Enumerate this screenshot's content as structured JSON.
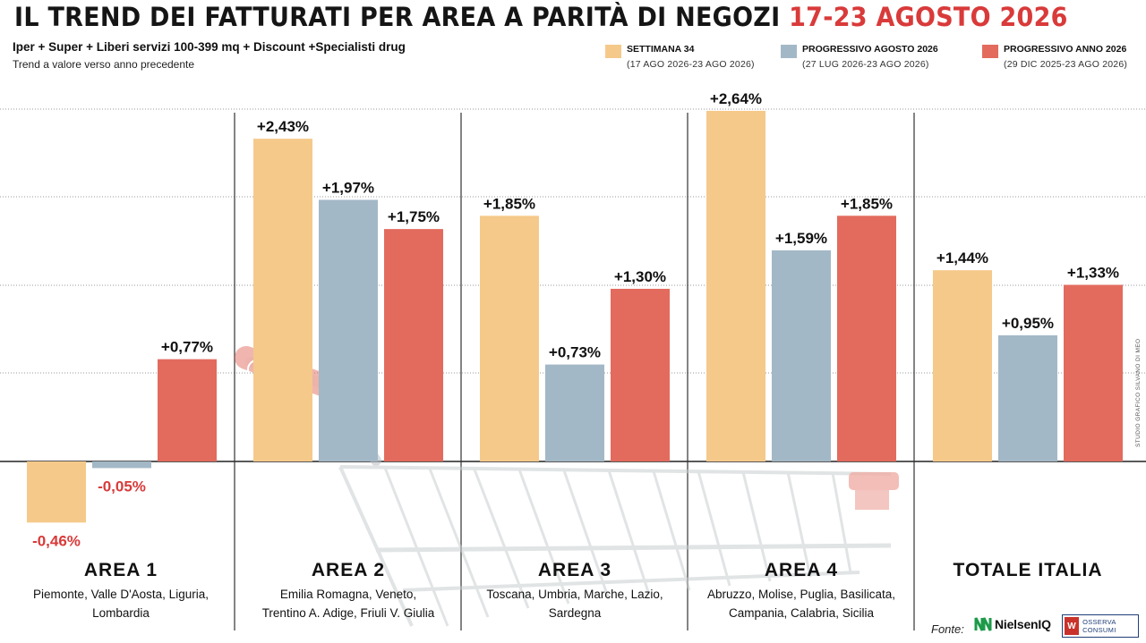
{
  "title": {
    "main": "IL TREND DEI FATTURATI PER AREA A PARITÀ DI NEGOZI",
    "highlight": "17-23 AGOSTO 2026"
  },
  "subtitle": "Iper + Super + Liberi servizi 100-399 mq + Discount +Specialisti drug",
  "subtitle2": "Trend a valore verso anno precedente",
  "legend": [
    {
      "label": "SETTIMANA 34",
      "sub": "(17 AGO 2026-23 AGO 2026)",
      "color": "#f5c98a"
    },
    {
      "label": "PROGRESSIVO AGOSTO 2026",
      "sub": "(27 LUG 2026-23 AGO 2026)",
      "color": "#a3b8c6"
    },
    {
      "label": "PROGRESSIVO ANNO 2026",
      "sub": "(29 DIC 2025-23 AGO 2026)",
      "color": "#e26b5e"
    }
  ],
  "areas": [
    {
      "name": "AREA 1",
      "regions_line1": "Piemonte, Valle D'Aosta, Liguria,",
      "regions_line2": "Lombardia"
    },
    {
      "name": "AREA 2",
      "regions_line1": "Emilia Romagna, Veneto,",
      "regions_line2": "Trentino A. Adige, Friuli V. Giulia"
    },
    {
      "name": "AREA 3",
      "regions_line1": "Toscana, Umbria, Marche, Lazio,",
      "regions_line2": "Sardegna"
    },
    {
      "name": "AREA 4",
      "regions_line1": "Abruzzo, Molise, Puglia, Basilicata,",
      "regions_line2": "Campania, Calabria, Sicilia"
    },
    {
      "name": "TOTALE ITALIA",
      "regions_line1": "",
      "regions_line2": ""
    }
  ],
  "source": {
    "fonte_label": "Fonte:",
    "nielsen": "NielsenIQ",
    "osserva": "OSSERVA CONSUMI"
  },
  "credit": "STUDIO GRAFICO SILVANO DI MEO",
  "colors": {
    "settimana": "#f5c98a",
    "agosto": "#a3b8c6",
    "anno": "#e26b5e",
    "positive_label": "#111111",
    "negative_label": "#d93a3a"
  },
  "chart_data": {
    "type": "bar",
    "categories": [
      "AREA 1",
      "AREA 2",
      "AREA 3",
      "AREA 4",
      "TOTALE ITALIA"
    ],
    "series": [
      {
        "name": "SETTIMANA 34",
        "values": [
          -0.46,
          2.43,
          1.85,
          2.64,
          1.44
        ],
        "labels": [
          "-0,46%",
          "+2,43%",
          "+1,85%",
          "+2,64%",
          "+1,44%"
        ]
      },
      {
        "name": "PROGRESSIVO AGOSTO 2026",
        "values": [
          -0.05,
          1.97,
          0.73,
          1.59,
          0.95
        ],
        "labels": [
          "-0,05%",
          "+1,97%",
          "+0,73%",
          "+1,59%",
          "+0,95%"
        ]
      },
      {
        "name": "PROGRESSIVO ANNO 2026",
        "values": [
          0.77,
          1.75,
          1.3,
          1.85,
          1.33
        ],
        "labels": [
          "+0,77%",
          "+1,75%",
          "+1,30%",
          "+1,85%",
          "+1,33%"
        ]
      }
    ],
    "title": "IL TREND DEI FATTURATI PER AREA A PARITÀ DI NEGOZI 17-23 AGOSTO 2026",
    "ylabel": "Trend a valore verso anno precedente",
    "ylim": [
      -0.5,
      2.75
    ],
    "grid": true,
    "legend_position": "top-right"
  }
}
